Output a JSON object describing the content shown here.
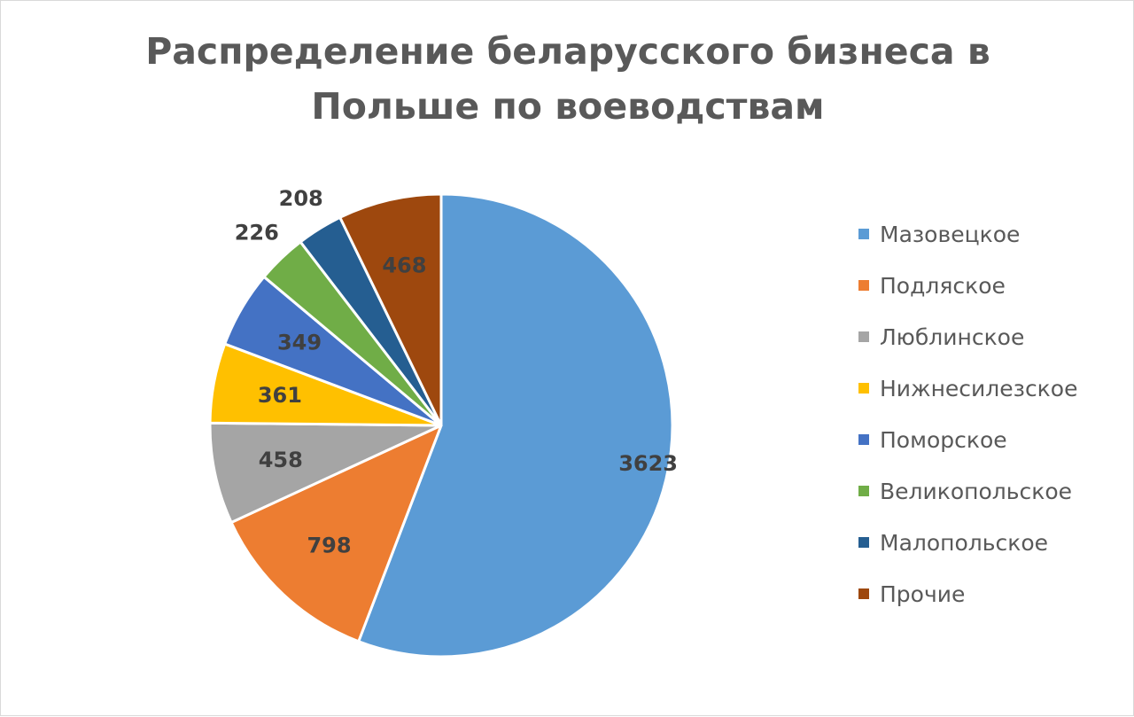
{
  "chart_data": {
    "type": "pie",
    "title_lines": [
      "Распределение беларусского бизнеса в",
      "Польше по воеводствам"
    ],
    "slices": [
      {
        "label": "Мазовецкое",
        "value": 3623,
        "color": "#5b9bd5"
      },
      {
        "label": "Подляское",
        "value": 798,
        "color": "#ed7d31"
      },
      {
        "label": "Люблинское",
        "value": 458,
        "color": "#a5a5a5"
      },
      {
        "label": "Нижнесилезское",
        "value": 361,
        "color": "#ffc000"
      },
      {
        "label": "Поморское",
        "value": 349,
        "color": "#4472c4"
      },
      {
        "label": "Великопольское",
        "value": 226,
        "color": "#70ad47"
      },
      {
        "label": "Малопольское",
        "value": 208,
        "color": "#255e91"
      },
      {
        "label": "Прочие",
        "value": 468,
        "color": "#9e480e"
      }
    ],
    "legend_position": "right",
    "data_labels": true,
    "start_angle": "12 o'clock",
    "direction": "clockwise"
  }
}
